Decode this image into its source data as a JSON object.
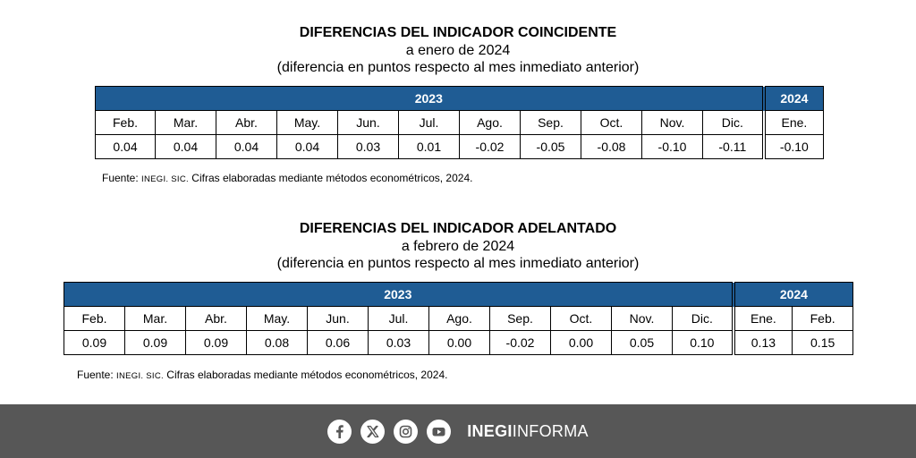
{
  "coincidente": {
    "title": "DIFERENCIAS DEL INDICADOR COINCIDENTE",
    "subtitle": "a enero de 2024",
    "note": "(diferencia en puntos respecto al mes inmediato anterior)",
    "year_main": "2023",
    "year_next": "2024",
    "months": [
      "Feb.",
      "Mar.",
      "Abr.",
      "May.",
      "Jun.",
      "Jul.",
      "Ago.",
      "Sep.",
      "Oct.",
      "Nov.",
      "Dic.",
      "Ene."
    ],
    "values": [
      "0.04",
      "0.04",
      "0.04",
      "0.04",
      "0.03",
      "0.01",
      "-0.02",
      "-0.05",
      "-0.08",
      "-0.10",
      "-0.11",
      "-0.10"
    ]
  },
  "adelantado": {
    "title": "DIFERENCIAS DEL INDICADOR ADELANTADO",
    "subtitle": "a febrero de 2024",
    "note": "(diferencia en puntos respecto al mes inmediato anterior)",
    "year_main": "2023",
    "year_next": "2024",
    "months": [
      "Feb.",
      "Mar.",
      "Abr.",
      "May.",
      "Jun.",
      "Jul.",
      "Ago.",
      "Sep.",
      "Oct.",
      "Nov.",
      "Dic.",
      "Ene.",
      "Feb."
    ],
    "values": [
      "0.09",
      "0.09",
      "0.09",
      "0.08",
      "0.06",
      "0.03",
      "0.00",
      "-0.02",
      "0.00",
      "0.05",
      "0.10",
      "0.13",
      "0.15"
    ]
  },
  "source": {
    "prefix": "Fuente: ",
    "org": "INEGI. SIC.",
    "text": " Cifras elaboradas mediante métodos econométricos, 2024."
  },
  "footer": {
    "brand_bold": "INEGI",
    "brand_light": "INFORMA",
    "icons": [
      "facebook-icon",
      "x-icon",
      "instagram-icon",
      "youtube-icon"
    ]
  },
  "colors": {
    "header_blue": "#1f5c94",
    "footer_gray": "#575757"
  }
}
